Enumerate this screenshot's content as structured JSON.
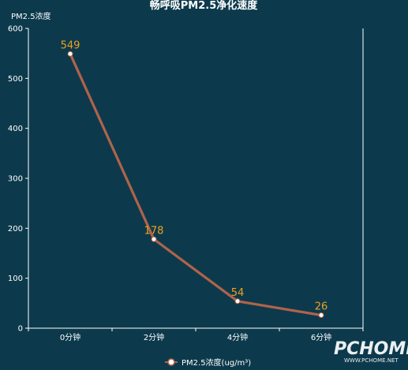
{
  "chart_data": {
    "type": "line",
    "title": "畅呼吸PM2.5净化速度",
    "ylabel": "PM2.5浓度",
    "xlabel": "",
    "categories": [
      "0分钟",
      "2分钟",
      "4分钟",
      "6分钟"
    ],
    "series": [
      {
        "name": "PM2.5浓度(ug/m³)",
        "values": [
          549,
          178,
          54,
          26
        ],
        "color": "#b0634a"
      }
    ],
    "ylim": [
      0,
      600
    ],
    "yticks": [
      0,
      100,
      200,
      300,
      400,
      500,
      600
    ],
    "grid": false,
    "legend_position": "bottom-center",
    "data_label_color": "#f0a020",
    "background_color": "#0c3a4c"
  },
  "watermark": {
    "text": "PCHOME",
    "sub": "WWW.PCHOME.NET"
  }
}
